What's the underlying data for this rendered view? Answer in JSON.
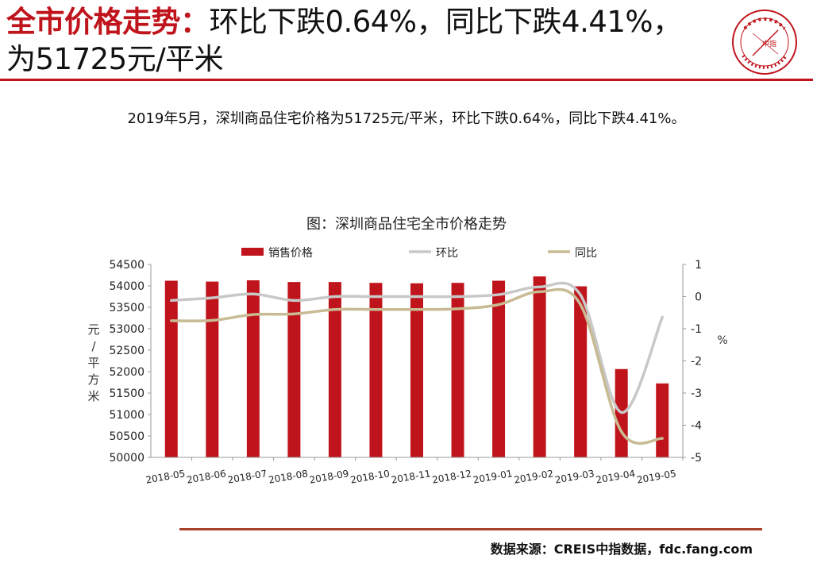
{
  "header": {
    "title_red": "全市价格走势：",
    "title_rest": "环比下跌0.64%，同比下跌4.41%，为51725元/平米"
  },
  "summary": "2019年5月，深圳商品住宅价格为51725元/平米，环比下跌0.64%，同比下跌4.41%。",
  "logo": {
    "icon": "china-index-academy-seal",
    "text": "CHINA INDEX ACADEMY",
    "center_text": "中指"
  },
  "colors": {
    "accent": "#c0141c",
    "bar": "#c0141c",
    "mom_line": "#c8c8c8",
    "yoy_line": "#c8bb94",
    "rule_bottom": "#a8412a"
  },
  "chart_data": {
    "type": "bar",
    "title": "图：深圳商品住宅全市价格走势",
    "categories": [
      "2018-05",
      "2018-06",
      "2018-07",
      "2018-08",
      "2018-09",
      "2018-10",
      "2018-11",
      "2018-12",
      "2019-01",
      "2019-02",
      "2019-03",
      "2019-04",
      "2019-05"
    ],
    "ylabel": "元/平方米",
    "y2label": "%",
    "ylim": [
      50000,
      54500
    ],
    "y2lim": [
      -5,
      1
    ],
    "yticks": [
      "50000",
      "50500",
      "51000",
      "51500",
      "52000",
      "52500",
      "53000",
      "53500",
      "54000",
      "54500"
    ],
    "y2ticks": [
      "-5",
      "-4",
      "-3",
      "-2",
      "-1",
      "0",
      "1"
    ],
    "legend_position": "top",
    "grid": false,
    "series": [
      {
        "name": "销售价格",
        "type": "bar",
        "axis": "left",
        "values": [
          54120,
          54100,
          54130,
          54090,
          54090,
          54070,
          54060,
          54070,
          54120,
          54220,
          53990,
          52060,
          51725
        ]
      },
      {
        "name": "环比",
        "type": "line",
        "axis": "right",
        "values": [
          -0.12,
          -0.04,
          0.08,
          -0.12,
          0.0,
          0.0,
          0.0,
          0.0,
          0.06,
          0.3,
          0.05,
          -3.6,
          -0.64
        ]
      },
      {
        "name": "同比",
        "type": "line",
        "axis": "right",
        "values": [
          -0.75,
          -0.74,
          -0.56,
          -0.54,
          -0.4,
          -0.4,
          -0.4,
          -0.38,
          -0.25,
          0.15,
          -0.25,
          -4.2,
          -4.41
        ]
      }
    ]
  },
  "source": "数据来源：CREIS中指数据，fdc.fang.com"
}
